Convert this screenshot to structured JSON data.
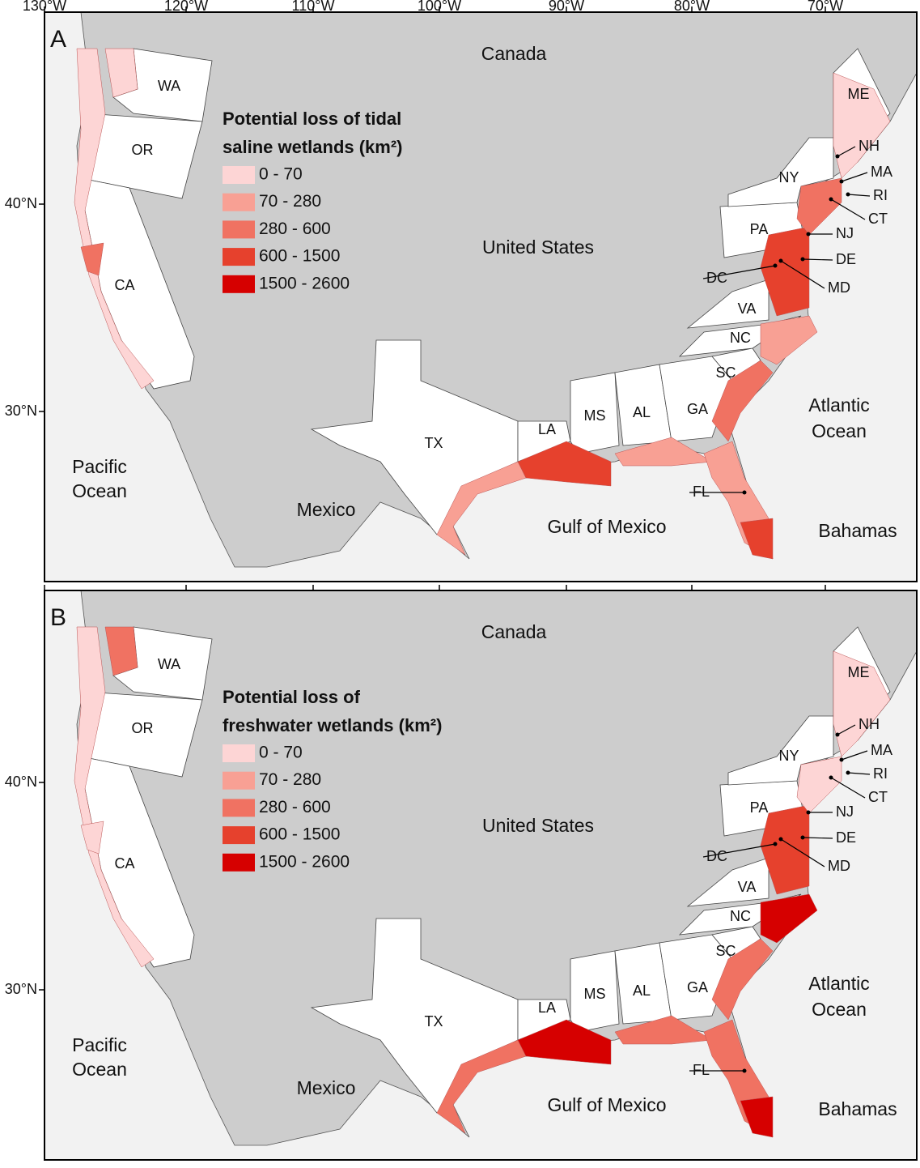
{
  "longitude_labels": [
    "130°W",
    "120°W",
    "110°W",
    "100°W",
    "90°W",
    "80°W",
    "70°W"
  ],
  "panels": [
    {
      "letter": "A",
      "latitude_labels": [
        "40°N",
        "30°N"
      ],
      "legend": {
        "title_lines": [
          "Potential loss of tidal",
          "saline wetlands (km²)"
        ],
        "classes": [
          {
            "label": "0 - 70",
            "color": "#fdd5d5"
          },
          {
            "label": "70 - 280",
            "color": "#f8a094"
          },
          {
            "label": "280 - 600",
            "color": "#f07262"
          },
          {
            "label": "600 - 1500",
            "color": "#e6412d"
          },
          {
            "label": "1500 - 2600",
            "color": "#d60000"
          }
        ]
      },
      "places": [
        "Canada",
        "United States",
        "Mexico",
        "Pacific",
        "Ocean",
        "Atlantic",
        "Ocean",
        "Gulf of Mexico",
        "Bahamas"
      ],
      "states": [
        "WA",
        "OR",
        "CA",
        "TX",
        "LA",
        "MS",
        "AL",
        "GA",
        "SC",
        "NC",
        "VA",
        "PA",
        "NY",
        "ME",
        "NH",
        "MA",
        "RI",
        "CT",
        "NJ",
        "DE",
        "MD",
        "DC",
        "FL"
      ]
    },
    {
      "letter": "B",
      "latitude_labels": [
        "40°N",
        "30°N"
      ],
      "legend": {
        "title_lines": [
          "Potential loss of",
          "freshwater wetlands (km²)"
        ],
        "classes": [
          {
            "label": "0 - 70",
            "color": "#fdd5d5"
          },
          {
            "label": "70 - 280",
            "color": "#f8a094"
          },
          {
            "label": "280 - 600",
            "color": "#f07262"
          },
          {
            "label": "600 - 1500",
            "color": "#e6412d"
          },
          {
            "label": "1500 - 2600",
            "color": "#d60000"
          }
        ]
      },
      "places": [
        "Canada",
        "United States",
        "Mexico",
        "Pacific",
        "Ocean",
        "Atlantic",
        "Ocean",
        "Gulf of Mexico",
        "Bahamas"
      ],
      "states": [
        "WA",
        "OR",
        "CA",
        "TX",
        "LA",
        "MS",
        "AL",
        "GA",
        "SC",
        "NC",
        "VA",
        "PA",
        "NY",
        "ME",
        "NH",
        "MA",
        "RI",
        "CT",
        "NJ",
        "DE",
        "MD",
        "DC",
        "FL"
      ]
    }
  ]
}
